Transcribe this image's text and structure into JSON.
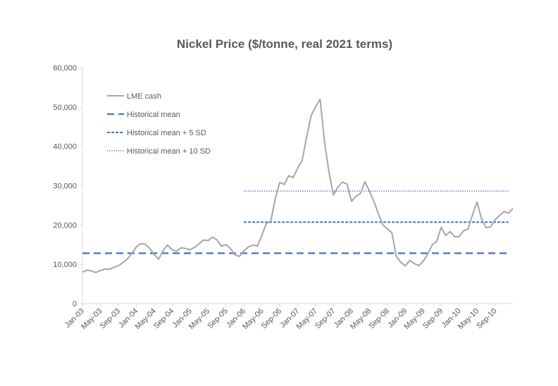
{
  "chart_data": {
    "type": "line",
    "title": "Nickel Price ($/tonne, real 2021 terms)",
    "xlabel": "",
    "ylabel": "",
    "ylim": [
      0,
      60000
    ],
    "yticks": [
      "0",
      "10,000",
      "20,000",
      "30,000",
      "40,000",
      "50,000",
      "60,000"
    ],
    "xticks": [
      "Jan-03",
      "May-03",
      "Sep-03",
      "Jan-04",
      "May-04",
      "Sep-04",
      "Jan-05",
      "May-05",
      "Sep-05",
      "Jan-06",
      "May-06",
      "Sep-06",
      "Jan-07",
      "May-07",
      "Sep-07",
      "Jan-08",
      "May-08",
      "Sep-08",
      "Jan-09",
      "May-09",
      "Sep-09",
      "Jan-10",
      "May-10",
      "Sep-10"
    ],
    "grid": false,
    "legend_position": "top-left",
    "x_start": "Jan-03",
    "x_interval": "monthly",
    "series": [
      {
        "name": "LME cash",
        "style": "solid",
        "color": "#a6a6a6",
        "values": [
          8000,
          8500,
          8300,
          7900,
          8400,
          8800,
          8700,
          9200,
          9600,
          10400,
          11300,
          12700,
          14400,
          15200,
          15100,
          14000,
          12500,
          11300,
          13500,
          14900,
          13700,
          13300,
          14200,
          14000,
          13700,
          14300,
          15200,
          16200,
          16000,
          16900,
          16200,
          14600,
          15000,
          14000,
          12400,
          12000,
          13400,
          14400,
          14900,
          14600,
          17300,
          20300,
          21000,
          26600,
          30800,
          30300,
          32500,
          32100,
          34400,
          36400,
          42400,
          47800,
          50000,
          52000,
          41000,
          33200,
          27600,
          29700,
          30900,
          30400,
          26000,
          27300,
          28000,
          31000,
          28600,
          26000,
          22800,
          20000,
          19000,
          18000,
          12000,
          10500,
          9600,
          11000,
          10200,
          9600,
          10800,
          12600,
          14900,
          15800,
          19400,
          17300,
          18300,
          17000,
          17000,
          18500,
          19000,
          22600,
          25800,
          21600,
          19300,
          19500,
          21300,
          22400,
          23400,
          23000,
          24200
        ]
      },
      {
        "name": "Historical mean",
        "style": "dashed",
        "color": "#4472c4",
        "value": 12800,
        "x_from": "Jan-03",
        "x_to": "Dec-10"
      },
      {
        "name": "Historical mean + 5 SD",
        "style": "short-dashed",
        "color": "#4472c4",
        "value": 20700,
        "x_from": "Jan-06",
        "x_to": "Dec-10"
      },
      {
        "name": "Historical mean + 10 SD",
        "style": "dotted",
        "color": "#4472c4",
        "value": 28600,
        "x_from": "Jan-06",
        "x_to": "Dec-10"
      }
    ]
  }
}
